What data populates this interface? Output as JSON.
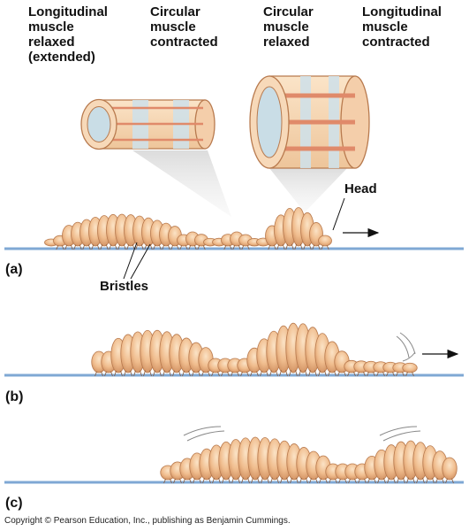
{
  "labels": {
    "long_relaxed": [
      "Longitudinal",
      "muscle",
      "relaxed",
      "(extended)"
    ],
    "circ_contracted": [
      "Circular",
      "muscle",
      "contracted"
    ],
    "circ_relaxed": [
      "Circular",
      "muscle",
      "relaxed"
    ],
    "long_contracted": [
      "Longitudinal",
      "muscle",
      "contracted"
    ],
    "head": "Head",
    "bristles": "Bristles"
  },
  "panels": {
    "a": "(a)",
    "b": "(b)",
    "c": "(c)"
  },
  "copyright": "Copyright © Pearson Education, Inc., publishing as Benjamin Cummings.",
  "colors": {
    "worm_body": "#f0bd8e",
    "worm_outline": "#b87a4e",
    "ground": "#7fa8d4",
    "muscle_band": "#cfe0e8",
    "longitudinal_stripe": "#e08a6a"
  }
}
